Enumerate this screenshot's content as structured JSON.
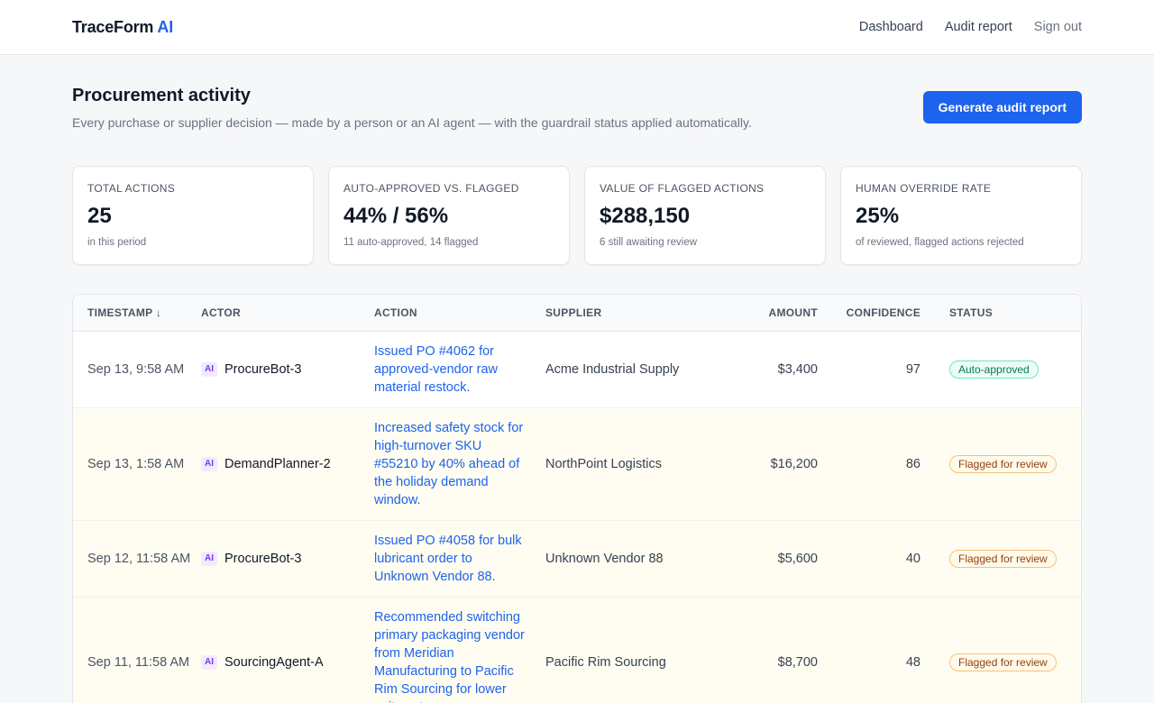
{
  "brand": {
    "name": "TraceForm",
    "suffix": "AI"
  },
  "nav": [
    "Dashboard",
    "Audit report",
    "Sign out"
  ],
  "page": {
    "title": "Procurement activity",
    "subtitle": "Every purchase or supplier decision — made by a person or an AI agent — with the guardrail status applied automatically.",
    "generate_label": "Generate audit report"
  },
  "stats": [
    {
      "label": "Total actions",
      "value": "25",
      "note": "in this period"
    },
    {
      "label": "Auto-approved vs. flagged",
      "value": "44% / 56%",
      "note": "11 auto-approved, 14 flagged"
    },
    {
      "label": "Value of flagged actions",
      "value": "$288,150",
      "note": "6 still awaiting review"
    },
    {
      "label": "Human override rate",
      "value": "25%",
      "note": "of reviewed, flagged actions rejected"
    }
  ],
  "table": {
    "headers": [
      "Timestamp ↓",
      "Actor",
      "Action",
      "Supplier",
      "Amount",
      "Confidence",
      "Status"
    ],
    "ai_badge": "AI",
    "rows": [
      {
        "timestamp": "Sep 13, 9:58 AM",
        "actor": "ProcureBot-3",
        "action": "Issued PO #4062 for approved-vendor raw material restock.",
        "supplier": "Acme Industrial Supply",
        "amount": "$3,400",
        "confidence": "97",
        "status": "Auto-approved",
        "state": "ok"
      },
      {
        "timestamp": "Sep 13, 1:58 AM",
        "actor": "DemandPlanner-2",
        "action": "Increased safety stock for high-turnover SKU #55210 by 40% ahead of the holiday demand window.",
        "supplier": "NorthPoint Logistics",
        "amount": "$16,200",
        "confidence": "86",
        "status": "Flagged for review",
        "state": "flag"
      },
      {
        "timestamp": "Sep 12, 11:58 AM",
        "actor": "ProcureBot-3",
        "action": "Issued PO #4058 for bulk lubricant order to Unknown Vendor 88.",
        "supplier": "Unknown Vendor 88",
        "amount": "$5,600",
        "confidence": "40",
        "status": "Flagged for review",
        "state": "flag"
      },
      {
        "timestamp": "Sep 11, 11:58 AM",
        "actor": "SourcingAgent-A",
        "action": "Recommended switching primary packaging vendor from Meridian Manufacturing to Pacific Rim Sourcing for lower unit cost.",
        "supplier": "Pacific Rim Sourcing",
        "amount": "$8,700",
        "confidence": "48",
        "status": "Flagged for review",
        "state": "flag"
      }
    ]
  }
}
